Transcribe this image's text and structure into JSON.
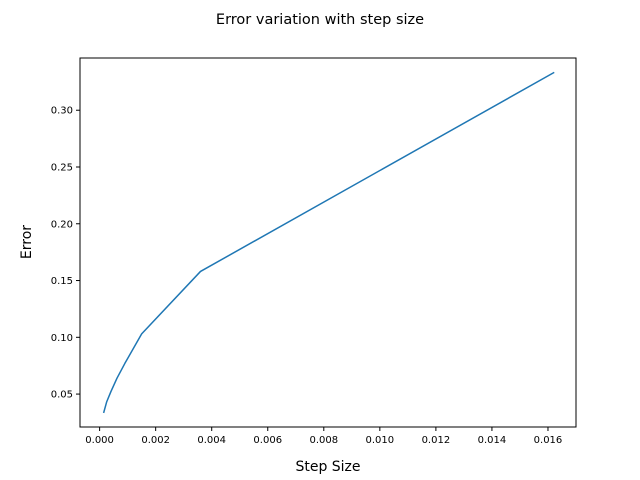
{
  "chart_data": {
    "type": "line",
    "title": "Error variation with step size",
    "xlabel": "Step Size",
    "ylabel": "Error",
    "xlim": [
      -0.0007,
      0.017
    ],
    "ylim": [
      0.021,
      0.346
    ],
    "x_ticks": [
      0.0,
      0.002,
      0.004,
      0.006,
      0.008,
      0.01,
      0.012,
      0.014,
      0.016
    ],
    "x_tick_labels": [
      "0.000",
      "0.002",
      "0.004",
      "0.006",
      "0.008",
      "0.010",
      "0.012",
      "0.014",
      "0.016"
    ],
    "y_ticks": [
      0.05,
      0.1,
      0.15,
      0.2,
      0.25,
      0.3
    ],
    "y_tick_labels": [
      "0.05",
      "0.10",
      "0.15",
      "0.20",
      "0.25",
      "0.30"
    ],
    "grid": false,
    "series": [
      {
        "color": "#1f77b4",
        "x": [
          0.00015,
          0.00025,
          0.0004,
          0.00062,
          0.0009,
          0.0015,
          0.0036,
          0.0162
        ],
        "y": [
          0.034,
          0.043,
          0.052,
          0.064,
          0.077,
          0.103,
          0.158,
          0.333
        ]
      }
    ]
  }
}
